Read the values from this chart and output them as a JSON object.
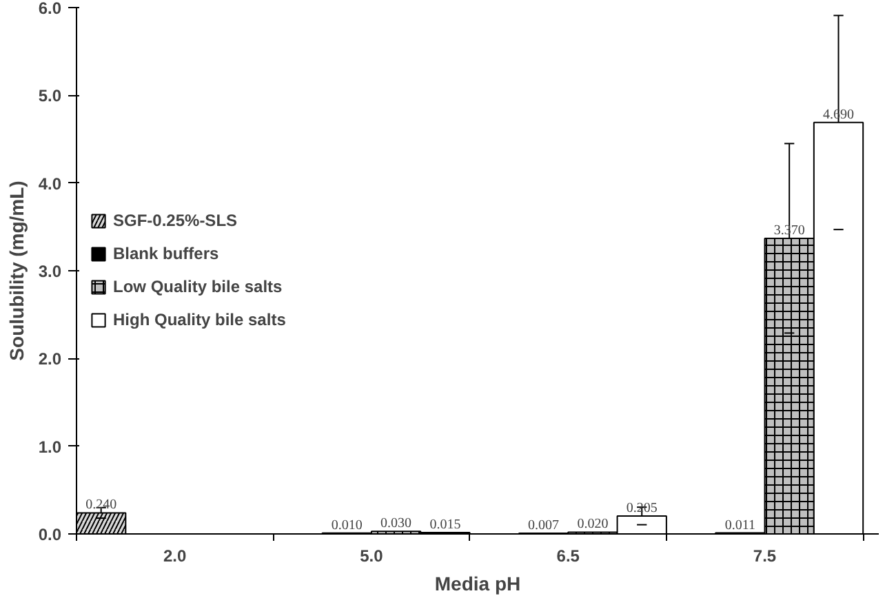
{
  "chart_data": {
    "type": "bar",
    "xlabel": "Media pH",
    "ylabel": "Soulubility (mg/mL)",
    "categories": [
      "2.0",
      "5.0",
      "6.5",
      "7.5"
    ],
    "series": [
      {
        "name": "SGF-0.25%-SLS",
        "color": "#d9d9d9",
        "values": [
          0.24,
          null,
          null,
          null
        ],
        "value_labels": [
          "0.240",
          null,
          null,
          null
        ],
        "errors": [
          0.06,
          null,
          null,
          null
        ]
      },
      {
        "name": "Blank buffers",
        "color": "#000000",
        "values": [
          null,
          0.01,
          0.007,
          0.011
        ],
        "value_labels": [
          null,
          "0.010",
          "0.007",
          "0.011"
        ],
        "errors": [
          null,
          null,
          null,
          null
        ]
      },
      {
        "name": "Low Quality bile salts",
        "color": "#bfbfbf",
        "values": [
          null,
          0.03,
          0.02,
          3.37
        ],
        "value_labels": [
          null,
          "0.030",
          "0.020",
          "3.370"
        ],
        "errors": [
          null,
          null,
          null,
          1.08
        ]
      },
      {
        "name": "High Quality bile salts",
        "color": "#ffffff",
        "values": [
          null,
          0.015,
          0.205,
          4.69
        ],
        "value_labels": [
          null,
          "0.015",
          "0.205",
          "4.690"
        ],
        "errors": [
          null,
          null,
          0.1,
          1.22
        ]
      }
    ],
    "ylim": [
      0,
      6
    ],
    "yticks": [
      {
        "value": 0,
        "label": "0.0"
      },
      {
        "value": 1,
        "label": "1.0"
      },
      {
        "value": 2,
        "label": "2.0"
      },
      {
        "value": 3,
        "label": "3.0"
      },
      {
        "value": 4,
        "label": "4.0"
      },
      {
        "value": 5,
        "label": "5.0"
      },
      {
        "value": 6,
        "label": "6.0"
      }
    ],
    "grid": false,
    "legend": "left"
  }
}
